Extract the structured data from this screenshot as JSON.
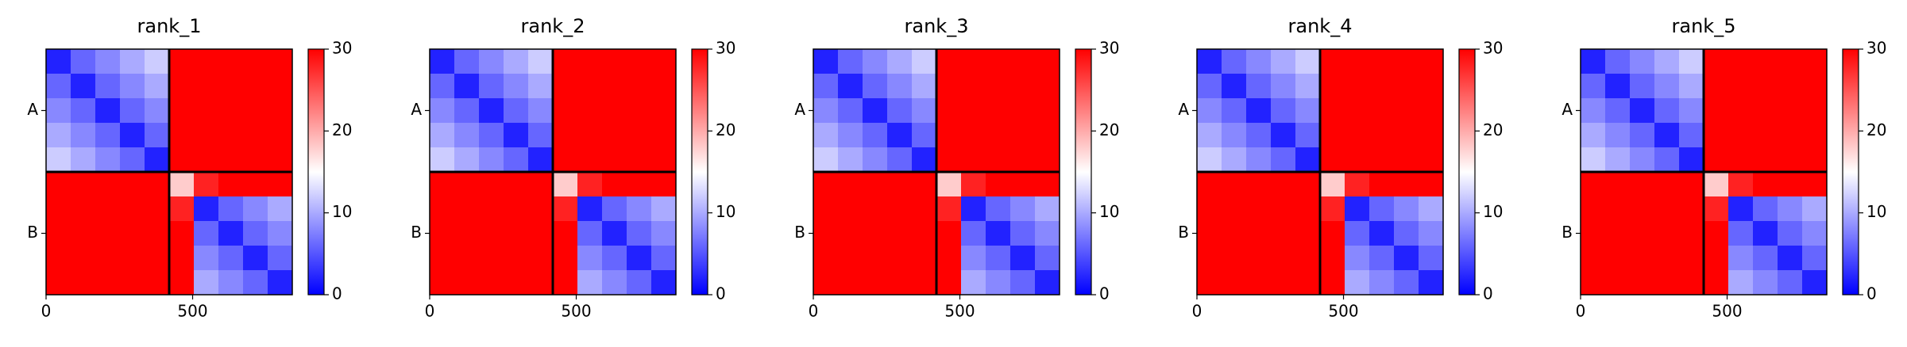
{
  "chart_data": [
    {
      "type": "heatmap",
      "title": "rank_1",
      "xlim": [
        0,
        840
      ],
      "ylim": [
        0,
        840
      ],
      "xticks": [
        0,
        500
      ],
      "yticks": [
        {
          "value": 210,
          "label": "A"
        },
        {
          "value": 630,
          "label": "B"
        }
      ],
      "lines": [
        420
      ],
      "clim": [
        0,
        30
      ],
      "cticks": [
        0,
        10,
        20,
        30
      ],
      "colormap": [
        "#0000ff",
        "#ffffff",
        "#ff0000"
      ],
      "z": [
        [
          2,
          6,
          8,
          10,
          12,
          30,
          30,
          30,
          30,
          30
        ],
        [
          6,
          2,
          6,
          8,
          10,
          30,
          30,
          30,
          30,
          30
        ],
        [
          8,
          6,
          2,
          6,
          8,
          30,
          30,
          30,
          30,
          30
        ],
        [
          10,
          8,
          6,
          2,
          6,
          30,
          30,
          30,
          30,
          30
        ],
        [
          12,
          10,
          8,
          6,
          2,
          30,
          30,
          30,
          30,
          30
        ],
        [
          30,
          30,
          30,
          30,
          30,
          18,
          28,
          30,
          30,
          30
        ],
        [
          30,
          30,
          30,
          30,
          30,
          28,
          2,
          6,
          8,
          10
        ],
        [
          30,
          30,
          30,
          30,
          30,
          30,
          6,
          2,
          6,
          8
        ],
        [
          30,
          30,
          30,
          30,
          30,
          30,
          8,
          6,
          2,
          6
        ],
        [
          30,
          30,
          30,
          30,
          30,
          30,
          10,
          8,
          6,
          2
        ]
      ]
    },
    {
      "type": "heatmap",
      "title": "rank_2",
      "xlim": [
        0,
        840
      ],
      "ylim": [
        0,
        840
      ],
      "xticks": [
        0,
        500
      ],
      "yticks": [
        {
          "value": 210,
          "label": "A"
        },
        {
          "value": 630,
          "label": "B"
        }
      ],
      "lines": [
        420
      ],
      "clim": [
        0,
        30
      ],
      "cticks": [
        0,
        10,
        20,
        30
      ],
      "colormap": [
        "#0000ff",
        "#ffffff",
        "#ff0000"
      ],
      "z": [
        [
          2,
          6,
          8,
          10,
          12,
          30,
          30,
          30,
          30,
          30
        ],
        [
          6,
          2,
          6,
          8,
          10,
          30,
          30,
          30,
          30,
          30
        ],
        [
          8,
          6,
          2,
          6,
          8,
          30,
          30,
          30,
          30,
          30
        ],
        [
          10,
          8,
          6,
          2,
          6,
          30,
          30,
          30,
          30,
          30
        ],
        [
          12,
          10,
          8,
          6,
          2,
          30,
          30,
          30,
          30,
          30
        ],
        [
          30,
          30,
          30,
          30,
          30,
          18,
          28,
          30,
          30,
          30
        ],
        [
          30,
          30,
          30,
          30,
          30,
          28,
          2,
          6,
          8,
          10
        ],
        [
          30,
          30,
          30,
          30,
          30,
          30,
          6,
          2,
          6,
          8
        ],
        [
          30,
          30,
          30,
          30,
          30,
          30,
          8,
          6,
          2,
          6
        ],
        [
          30,
          30,
          30,
          30,
          30,
          30,
          10,
          8,
          6,
          2
        ]
      ]
    },
    {
      "type": "heatmap",
      "title": "rank_3",
      "xlim": [
        0,
        840
      ],
      "ylim": [
        0,
        840
      ],
      "xticks": [
        0,
        500
      ],
      "yticks": [
        {
          "value": 210,
          "label": "A"
        },
        {
          "value": 630,
          "label": "B"
        }
      ],
      "lines": [
        420
      ],
      "clim": [
        0,
        30
      ],
      "cticks": [
        0,
        10,
        20,
        30
      ],
      "colormap": [
        "#0000ff",
        "#ffffff",
        "#ff0000"
      ],
      "z": [
        [
          2,
          6,
          8,
          10,
          12,
          30,
          30,
          30,
          30,
          30
        ],
        [
          6,
          2,
          6,
          8,
          10,
          30,
          30,
          30,
          30,
          30
        ],
        [
          8,
          6,
          2,
          6,
          8,
          30,
          30,
          30,
          30,
          30
        ],
        [
          10,
          8,
          6,
          2,
          6,
          30,
          30,
          30,
          30,
          30
        ],
        [
          12,
          10,
          8,
          6,
          2,
          30,
          30,
          30,
          30,
          30
        ],
        [
          30,
          30,
          30,
          30,
          30,
          18,
          28,
          30,
          30,
          30
        ],
        [
          30,
          30,
          30,
          30,
          30,
          28,
          2,
          6,
          8,
          10
        ],
        [
          30,
          30,
          30,
          30,
          30,
          30,
          6,
          2,
          6,
          8
        ],
        [
          30,
          30,
          30,
          30,
          30,
          30,
          8,
          6,
          2,
          6
        ],
        [
          30,
          30,
          30,
          30,
          30,
          30,
          10,
          8,
          6,
          2
        ]
      ]
    },
    {
      "type": "heatmap",
      "title": "rank_4",
      "xlim": [
        0,
        840
      ],
      "ylim": [
        0,
        840
      ],
      "xticks": [
        0,
        500
      ],
      "yticks": [
        {
          "value": 210,
          "label": "A"
        },
        {
          "value": 630,
          "label": "B"
        }
      ],
      "lines": [
        420
      ],
      "clim": [
        0,
        30
      ],
      "cticks": [
        0,
        10,
        20,
        30
      ],
      "colormap": [
        "#0000ff",
        "#ffffff",
        "#ff0000"
      ],
      "z": [
        [
          2,
          6,
          8,
          10,
          12,
          30,
          30,
          30,
          30,
          30
        ],
        [
          6,
          2,
          6,
          8,
          10,
          30,
          30,
          30,
          30,
          30
        ],
        [
          8,
          6,
          2,
          6,
          8,
          30,
          30,
          30,
          30,
          30
        ],
        [
          10,
          8,
          6,
          2,
          6,
          30,
          30,
          30,
          30,
          30
        ],
        [
          12,
          10,
          8,
          6,
          2,
          30,
          30,
          30,
          30,
          30
        ],
        [
          30,
          30,
          30,
          30,
          30,
          18,
          28,
          30,
          30,
          30
        ],
        [
          30,
          30,
          30,
          30,
          30,
          28,
          2,
          6,
          8,
          10
        ],
        [
          30,
          30,
          30,
          30,
          30,
          30,
          6,
          2,
          6,
          8
        ],
        [
          30,
          30,
          30,
          30,
          30,
          30,
          8,
          6,
          2,
          6
        ],
        [
          30,
          30,
          30,
          30,
          30,
          30,
          10,
          8,
          6,
          2
        ]
      ]
    },
    {
      "type": "heatmap",
      "title": "rank_5",
      "xlim": [
        0,
        840
      ],
      "ylim": [
        0,
        840
      ],
      "xticks": [
        0,
        500
      ],
      "yticks": [
        {
          "value": 210,
          "label": "A"
        },
        {
          "value": 630,
          "label": "B"
        }
      ],
      "lines": [
        420
      ],
      "clim": [
        0,
        30
      ],
      "cticks": [
        0,
        10,
        20,
        30
      ],
      "colormap": [
        "#0000ff",
        "#ffffff",
        "#ff0000"
      ],
      "z": [
        [
          2,
          6,
          8,
          10,
          12,
          30,
          30,
          30,
          30,
          30
        ],
        [
          6,
          2,
          6,
          8,
          10,
          30,
          30,
          30,
          30,
          30
        ],
        [
          8,
          6,
          2,
          6,
          8,
          30,
          30,
          30,
          30,
          30
        ],
        [
          10,
          8,
          6,
          2,
          6,
          30,
          30,
          30,
          30,
          30
        ],
        [
          12,
          10,
          8,
          6,
          2,
          30,
          30,
          30,
          30,
          30
        ],
        [
          30,
          30,
          30,
          30,
          30,
          18,
          28,
          30,
          30,
          30
        ],
        [
          30,
          30,
          30,
          30,
          30,
          28,
          2,
          6,
          8,
          10
        ],
        [
          30,
          30,
          30,
          30,
          30,
          30,
          6,
          2,
          6,
          8
        ],
        [
          30,
          30,
          30,
          30,
          30,
          30,
          8,
          6,
          2,
          6
        ],
        [
          30,
          30,
          30,
          30,
          30,
          30,
          10,
          8,
          6,
          2
        ]
      ]
    }
  ]
}
